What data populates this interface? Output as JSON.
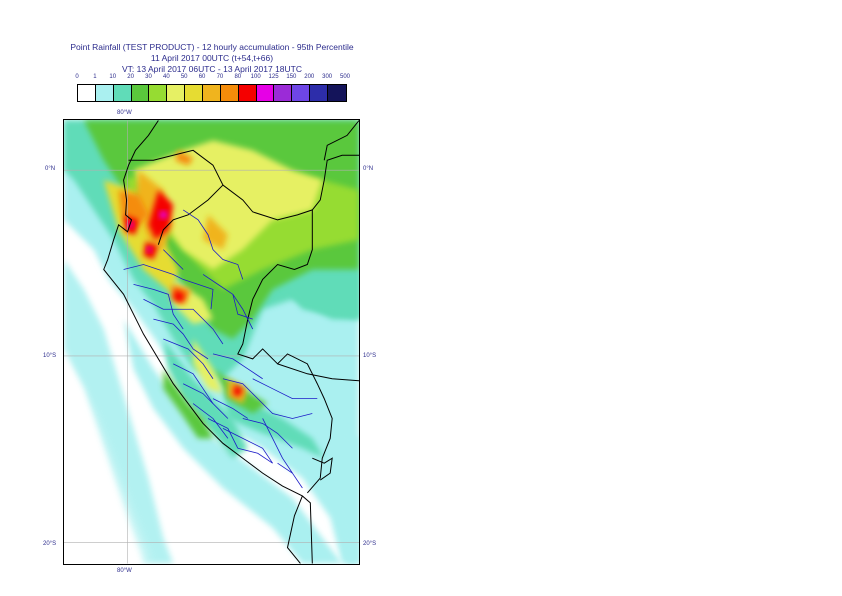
{
  "header": {
    "line1": "Point Rainfall (TEST PRODUCT) - 12 hourly accumulation - 95th Percentile",
    "line2": "11 April 2017 00UTC (t+54,t+66)",
    "line3": "VT: 13 April 2017 06UTC - 13 April 2017 18UTC"
  },
  "legend": {
    "labels": [
      "0",
      "1",
      "10",
      "20",
      "30",
      "40",
      "50",
      "60",
      "70",
      "80",
      "100",
      "125",
      "150",
      "200",
      "300",
      "500"
    ],
    "colors": [
      "#ffffff",
      "#aaf0f0",
      "#60dcb8",
      "#5ac83c",
      "#96dc32",
      "#e6f064",
      "#e6dc32",
      "#f0b41e",
      "#f58c0a",
      "#f50000",
      "#e600e6",
      "#9b2bd7",
      "#6e46e6",
      "#2d2daa",
      "#14145a"
    ]
  },
  "map": {
    "lon_labels": {
      "top": "80°W",
      "bottom": "80°W"
    },
    "lat_labels": [
      "0°N",
      "10°S",
      "20°S"
    ]
  }
}
